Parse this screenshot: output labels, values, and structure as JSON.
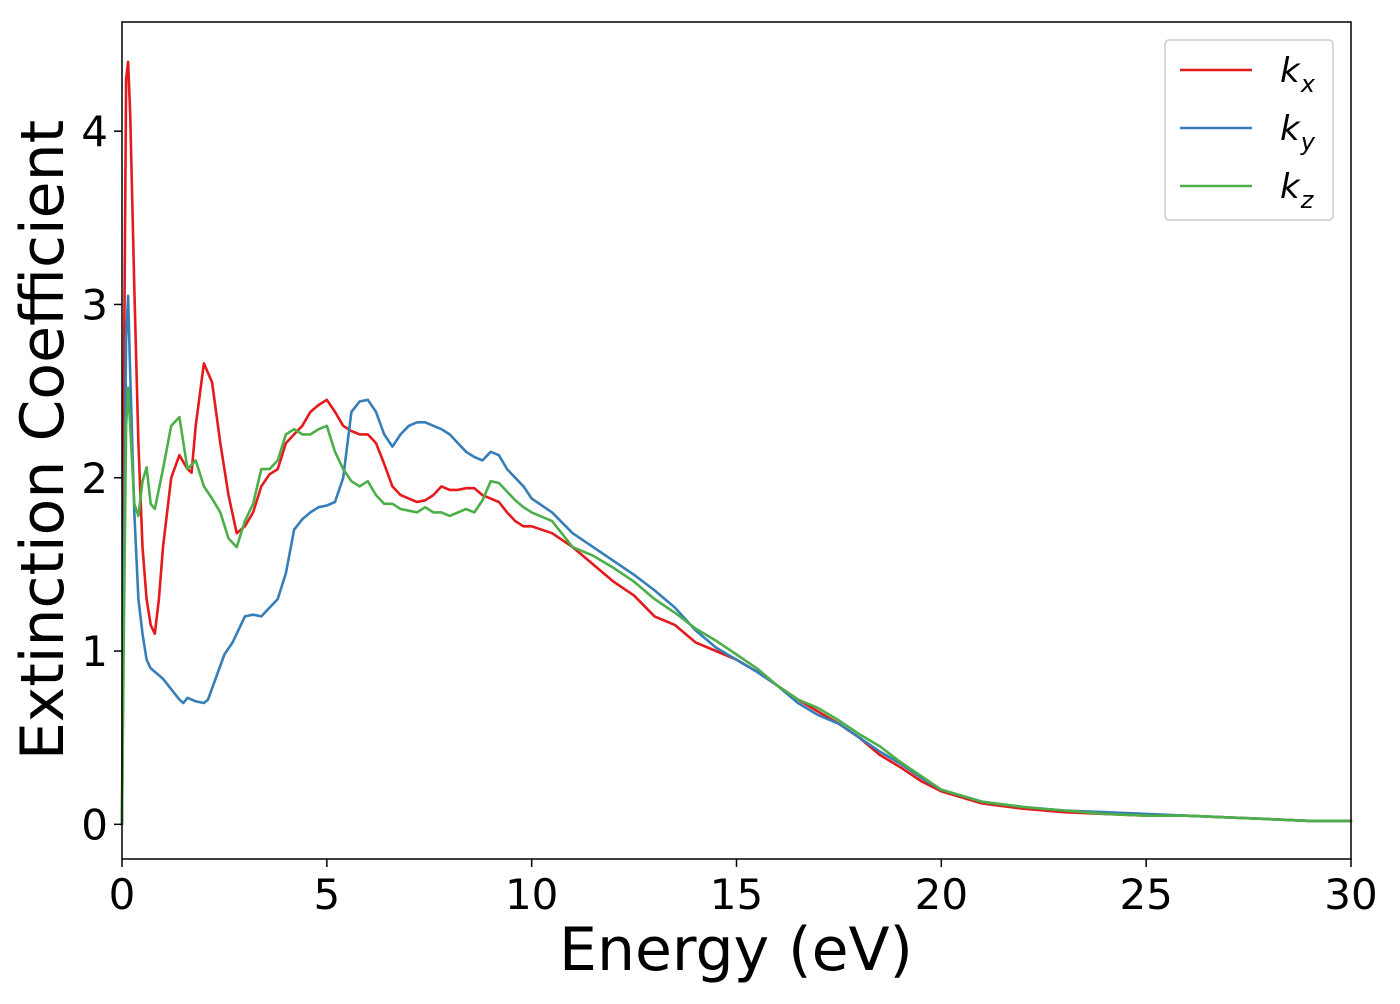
{
  "chart_data": {
    "type": "line",
    "title": "",
    "xlabel": "Energy (eV)",
    "ylabel": "Extinction Coefficient",
    "xlim": [
      0,
      30
    ],
    "ylim": [
      -0.2,
      4.63
    ],
    "xticks": [
      0,
      5,
      10,
      15,
      20,
      25,
      30
    ],
    "yticks": [
      0,
      1,
      2,
      3,
      4
    ],
    "grid": false,
    "legend_position": "top-right",
    "series": [
      {
        "name": "k_x",
        "legend_base": "k",
        "legend_sub": "x",
        "color": "#e41a1c",
        "x": [
          0,
          0.05,
          0.1,
          0.15,
          0.2,
          0.3,
          0.4,
          0.5,
          0.6,
          0.7,
          0.8,
          0.9,
          1.0,
          1.2,
          1.4,
          1.6,
          1.7,
          1.8,
          2.0,
          2.2,
          2.4,
          2.6,
          2.8,
          3.0,
          3.2,
          3.4,
          3.6,
          3.8,
          4.0,
          4.2,
          4.4,
          4.6,
          4.8,
          5.0,
          5.2,
          5.4,
          5.6,
          5.8,
          6.0,
          6.2,
          6.4,
          6.6,
          6.8,
          7.0,
          7.2,
          7.4,
          7.6,
          7.8,
          8.0,
          8.2,
          8.4,
          8.6,
          8.8,
          9.0,
          9.2,
          9.4,
          9.6,
          9.8,
          10.0,
          10.5,
          11.0,
          11.5,
          12.0,
          12.5,
          13.0,
          13.5,
          14.0,
          14.5,
          15.0,
          15.5,
          16.0,
          16.5,
          17.0,
          17.5,
          18.0,
          18.5,
          19.0,
          19.5,
          20.0,
          21.0,
          22.0,
          23.0,
          24.0,
          25.0,
          26.0,
          27.0,
          28.0,
          29.0,
          30.0
        ],
        "y": [
          0,
          2.6,
          4.3,
          4.4,
          4.1,
          3.1,
          2.2,
          1.6,
          1.3,
          1.15,
          1.1,
          1.3,
          1.6,
          2.0,
          2.13,
          2.05,
          2.03,
          2.3,
          2.66,
          2.55,
          2.2,
          1.9,
          1.68,
          1.72,
          1.8,
          1.95,
          2.02,
          2.05,
          2.2,
          2.25,
          2.3,
          2.38,
          2.42,
          2.45,
          2.38,
          2.3,
          2.27,
          2.25,
          2.25,
          2.2,
          2.08,
          1.95,
          1.9,
          1.88,
          1.86,
          1.87,
          1.9,
          1.95,
          1.93,
          1.93,
          1.94,
          1.94,
          1.9,
          1.88,
          1.86,
          1.8,
          1.75,
          1.72,
          1.72,
          1.68,
          1.6,
          1.5,
          1.4,
          1.32,
          1.2,
          1.15,
          1.05,
          1.0,
          0.95,
          0.88,
          0.8,
          0.72,
          0.65,
          0.58,
          0.5,
          0.4,
          0.33,
          0.25,
          0.19,
          0.12,
          0.09,
          0.07,
          0.06,
          0.05,
          0.05,
          0.04,
          0.03,
          0.02,
          0.02
        ]
      },
      {
        "name": "k_y",
        "legend_base": "k",
        "legend_sub": "y",
        "color": "#377eb8",
        "x": [
          0,
          0.05,
          0.1,
          0.15,
          0.2,
          0.3,
          0.4,
          0.5,
          0.6,
          0.7,
          0.8,
          1.0,
          1.2,
          1.4,
          1.5,
          1.6,
          1.8,
          2.0,
          2.1,
          2.3,
          2.5,
          2.7,
          2.9,
          3.0,
          3.2,
          3.4,
          3.6,
          3.8,
          4.0,
          4.2,
          4.4,
          4.6,
          4.8,
          5.0,
          5.2,
          5.4,
          5.6,
          5.8,
          6.0,
          6.2,
          6.4,
          6.6,
          6.8,
          7.0,
          7.2,
          7.4,
          7.6,
          7.8,
          8.0,
          8.2,
          8.4,
          8.6,
          8.8,
          9.0,
          9.2,
          9.4,
          9.6,
          9.8,
          10.0,
          10.5,
          11.0,
          11.5,
          12.0,
          12.5,
          13.0,
          13.5,
          14.0,
          14.5,
          15.0,
          15.5,
          16.0,
          16.5,
          17.0,
          17.5,
          18.0,
          18.5,
          19.0,
          19.5,
          20.0,
          21.0,
          22.0,
          23.0,
          24.0,
          25.0,
          26.0,
          27.0,
          28.0,
          29.0,
          30.0
        ],
        "y": [
          0,
          1.5,
          2.8,
          3.05,
          2.6,
          1.8,
          1.3,
          1.1,
          0.95,
          0.9,
          0.88,
          0.84,
          0.78,
          0.72,
          0.7,
          0.73,
          0.71,
          0.7,
          0.72,
          0.85,
          0.98,
          1.05,
          1.15,
          1.2,
          1.21,
          1.2,
          1.25,
          1.3,
          1.45,
          1.7,
          1.76,
          1.8,
          1.83,
          1.84,
          1.86,
          2.0,
          2.38,
          2.44,
          2.45,
          2.38,
          2.25,
          2.18,
          2.25,
          2.3,
          2.32,
          2.32,
          2.3,
          2.28,
          2.25,
          2.2,
          2.15,
          2.12,
          2.1,
          2.15,
          2.13,
          2.05,
          2.0,
          1.95,
          1.88,
          1.8,
          1.68,
          1.6,
          1.52,
          1.44,
          1.35,
          1.25,
          1.12,
          1.02,
          0.95,
          0.88,
          0.8,
          0.7,
          0.63,
          0.58,
          0.5,
          0.42,
          0.35,
          0.27,
          0.2,
          0.13,
          0.1,
          0.08,
          0.07,
          0.06,
          0.05,
          0.04,
          0.03,
          0.02,
          0.02
        ]
      },
      {
        "name": "k_z",
        "legend_base": "k",
        "legend_sub": "z",
        "color": "#4daf4a",
        "x": [
          0,
          0.05,
          0.1,
          0.15,
          0.2,
          0.3,
          0.4,
          0.5,
          0.6,
          0.7,
          0.8,
          1.0,
          1.2,
          1.4,
          1.6,
          1.8,
          2.0,
          2.2,
          2.4,
          2.6,
          2.8,
          3.0,
          3.2,
          3.4,
          3.6,
          3.8,
          4.0,
          4.2,
          4.4,
          4.6,
          4.8,
          5.0,
          5.2,
          5.4,
          5.6,
          5.8,
          6.0,
          6.2,
          6.4,
          6.6,
          6.8,
          7.0,
          7.2,
          7.4,
          7.6,
          7.8,
          8.0,
          8.2,
          8.4,
          8.6,
          8.8,
          9.0,
          9.2,
          9.4,
          9.6,
          9.8,
          10.0,
          10.5,
          11.0,
          11.5,
          12.0,
          12.5,
          13.0,
          13.5,
          14.0,
          14.5,
          15.0,
          15.5,
          16.0,
          16.5,
          17.0,
          17.5,
          18.0,
          18.5,
          19.0,
          19.5,
          20.0,
          21.0,
          22.0,
          23.0,
          24.0,
          25.0,
          26.0,
          27.0,
          28.0,
          29.0,
          30.0
        ],
        "y": [
          0,
          1.2,
          2.3,
          2.52,
          2.3,
          1.85,
          1.78,
          1.98,
          2.06,
          1.85,
          1.82,
          2.05,
          2.3,
          2.35,
          2.05,
          2.1,
          1.95,
          1.88,
          1.8,
          1.65,
          1.6,
          1.75,
          1.85,
          2.05,
          2.05,
          2.1,
          2.25,
          2.28,
          2.25,
          2.25,
          2.28,
          2.3,
          2.15,
          2.05,
          1.98,
          1.95,
          1.98,
          1.9,
          1.85,
          1.85,
          1.82,
          1.81,
          1.8,
          1.83,
          1.8,
          1.8,
          1.78,
          1.8,
          1.82,
          1.8,
          1.87,
          1.98,
          1.97,
          1.92,
          1.87,
          1.83,
          1.8,
          1.75,
          1.6,
          1.55,
          1.48,
          1.4,
          1.3,
          1.22,
          1.13,
          1.06,
          0.98,
          0.9,
          0.8,
          0.72,
          0.67,
          0.6,
          0.52,
          0.45,
          0.36,
          0.28,
          0.2,
          0.13,
          0.1,
          0.08,
          0.06,
          0.05,
          0.05,
          0.04,
          0.03,
          0.02,
          0.02
        ]
      }
    ]
  }
}
